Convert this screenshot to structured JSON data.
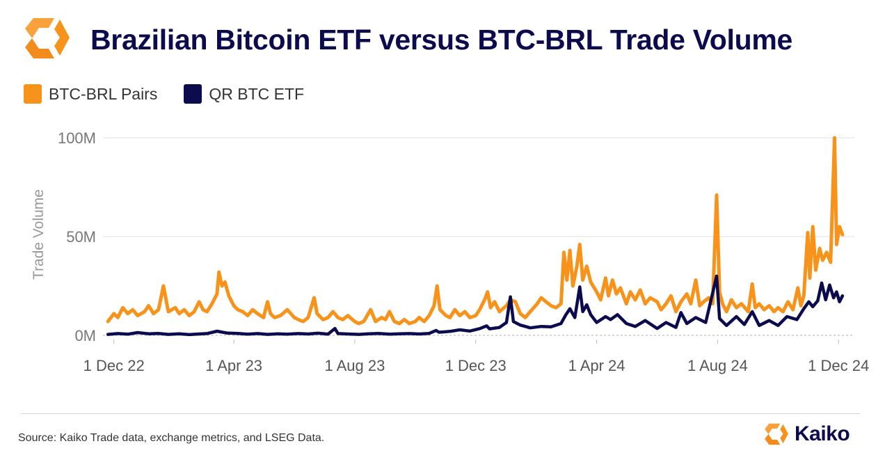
{
  "header": {
    "title": "Brazilian Bitcoin ETF versus BTC-BRL Trade Volume"
  },
  "colors": {
    "orange": "#f7931a",
    "navy": "#0b0b4e",
    "grid": "#e6e6e6",
    "axis_text": "#777777"
  },
  "legend": [
    {
      "label": "BTC-BRL Pairs",
      "color": "#f7931a"
    },
    {
      "label": "QR BTC ETF",
      "color": "#0b0b4e"
    }
  ],
  "footer": {
    "source": "Source: Kaiko Trade data, exchange metrics, and LSEG Data.",
    "brand": "Kaiko"
  },
  "chart_data": {
    "type": "line",
    "title": "Brazilian Bitcoin ETF versus BTC-BRL Trade Volume",
    "xlabel": "",
    "ylabel": "Trade Volume",
    "x_ticks": [
      "1 Dec 22",
      "1 Apr 23",
      "1 Aug 23",
      "1 Dec 23",
      "1 Apr 24",
      "1 Aug 24",
      "1 Dec 24"
    ],
    "y_ticks": [
      "0M",
      "50M",
      "100M"
    ],
    "ylim": [
      0,
      100
    ],
    "grid": true,
    "legend_position": "top-left",
    "series": [
      {
        "name": "BTC-BRL Pairs",
        "color": "#f7931a",
        "points": [
          [
            "2022-11-25",
            7
          ],
          [
            "2022-12-01",
            11
          ],
          [
            "2022-12-05",
            9
          ],
          [
            "2022-12-10",
            14
          ],
          [
            "2022-12-15",
            11
          ],
          [
            "2022-12-20",
            13
          ],
          [
            "2022-12-25",
            10
          ],
          [
            "2023-01-01",
            12
          ],
          [
            "2023-01-05",
            15
          ],
          [
            "2023-01-10",
            11
          ],
          [
            "2023-01-15",
            13
          ],
          [
            "2023-01-20",
            25
          ],
          [
            "2023-01-25",
            12
          ],
          [
            "2023-02-01",
            14
          ],
          [
            "2023-02-05",
            11
          ],
          [
            "2023-02-10",
            13
          ],
          [
            "2023-02-15",
            10
          ],
          [
            "2023-02-20",
            12
          ],
          [
            "2023-02-25",
            17
          ],
          [
            "2023-03-01",
            13
          ],
          [
            "2023-03-05",
            12
          ],
          [
            "2023-03-10",
            16
          ],
          [
            "2023-03-15",
            21
          ],
          [
            "2023-03-17",
            32
          ],
          [
            "2023-03-20",
            25
          ],
          [
            "2023-03-23",
            27
          ],
          [
            "2023-03-27",
            20
          ],
          [
            "2023-04-01",
            15
          ],
          [
            "2023-04-05",
            13
          ],
          [
            "2023-04-10",
            12
          ],
          [
            "2023-04-15",
            10
          ],
          [
            "2023-04-20",
            13
          ],
          [
            "2023-04-25",
            11
          ],
          [
            "2023-05-01",
            9
          ],
          [
            "2023-05-05",
            17
          ],
          [
            "2023-05-08",
            11
          ],
          [
            "2023-05-12",
            9
          ],
          [
            "2023-05-18",
            10
          ],
          [
            "2023-05-25",
            13
          ],
          [
            "2023-06-01",
            9
          ],
          [
            "2023-06-05",
            8
          ],
          [
            "2023-06-10",
            7
          ],
          [
            "2023-06-15",
            9
          ],
          [
            "2023-06-21",
            19
          ],
          [
            "2023-06-24",
            11
          ],
          [
            "2023-06-30",
            8
          ],
          [
            "2023-07-05",
            9
          ],
          [
            "2023-07-10",
            12
          ],
          [
            "2023-07-15",
            9
          ],
          [
            "2023-07-20",
            8
          ],
          [
            "2023-07-25",
            10
          ],
          [
            "2023-08-01",
            7
          ],
          [
            "2023-08-05",
            6
          ],
          [
            "2023-08-10",
            7
          ],
          [
            "2023-08-17",
            13
          ],
          [
            "2023-08-22",
            7
          ],
          [
            "2023-08-28",
            9
          ],
          [
            "2023-09-01",
            8
          ],
          [
            "2023-09-05",
            12
          ],
          [
            "2023-09-10",
            7
          ],
          [
            "2023-09-15",
            6
          ],
          [
            "2023-09-20",
            8
          ],
          [
            "2023-09-25",
            6
          ],
          [
            "2023-10-01",
            7
          ],
          [
            "2023-10-05",
            9
          ],
          [
            "2023-10-10",
            7
          ],
          [
            "2023-10-15",
            10
          ],
          [
            "2023-10-20",
            15
          ],
          [
            "2023-10-23",
            25
          ],
          [
            "2023-10-26",
            13
          ],
          [
            "2023-11-01",
            10
          ],
          [
            "2023-11-05",
            9
          ],
          [
            "2023-11-10",
            13
          ],
          [
            "2023-11-15",
            10
          ],
          [
            "2023-11-20",
            12
          ],
          [
            "2023-11-25",
            9
          ],
          [
            "2023-12-01",
            10
          ],
          [
            "2023-12-05",
            13
          ],
          [
            "2023-12-10",
            18
          ],
          [
            "2023-12-13",
            22
          ],
          [
            "2023-12-16",
            14
          ],
          [
            "2023-12-20",
            17
          ],
          [
            "2023-12-25",
            12
          ],
          [
            "2024-01-01",
            15
          ],
          [
            "2024-01-05",
            18
          ],
          [
            "2024-01-10",
            17
          ],
          [
            "2024-01-15",
            11
          ],
          [
            "2024-01-20",
            9
          ],
          [
            "2024-01-25",
            12
          ],
          [
            "2024-02-01",
            16
          ],
          [
            "2024-02-05",
            19
          ],
          [
            "2024-02-10",
            17
          ],
          [
            "2024-02-15",
            15
          ],
          [
            "2024-02-20",
            14
          ],
          [
            "2024-02-25",
            16
          ],
          [
            "2024-02-28",
            42
          ],
          [
            "2024-03-02",
            28
          ],
          [
            "2024-03-05",
            43
          ],
          [
            "2024-03-08",
            25
          ],
          [
            "2024-03-12",
            35
          ],
          [
            "2024-03-15",
            46
          ],
          [
            "2024-03-18",
            28
          ],
          [
            "2024-03-22",
            35
          ],
          [
            "2024-03-26",
            27
          ],
          [
            "2024-04-01",
            22
          ],
          [
            "2024-04-05",
            18
          ],
          [
            "2024-04-10",
            29
          ],
          [
            "2024-04-13",
            20
          ],
          [
            "2024-04-17",
            28
          ],
          [
            "2024-04-21",
            21
          ],
          [
            "2024-04-25",
            24
          ],
          [
            "2024-05-01",
            16
          ],
          [
            "2024-05-05",
            22
          ],
          [
            "2024-05-10",
            18
          ],
          [
            "2024-05-15",
            23
          ],
          [
            "2024-05-20",
            16
          ],
          [
            "2024-05-25",
            19
          ],
          [
            "2024-06-01",
            17
          ],
          [
            "2024-06-05",
            13
          ],
          [
            "2024-06-10",
            16
          ],
          [
            "2024-06-15",
            20
          ],
          [
            "2024-06-20",
            12
          ],
          [
            "2024-06-25",
            17
          ],
          [
            "2024-07-01",
            21
          ],
          [
            "2024-07-05",
            16
          ],
          [
            "2024-07-10",
            28
          ],
          [
            "2024-07-14",
            15
          ],
          [
            "2024-07-18",
            17
          ],
          [
            "2024-07-23",
            19
          ],
          [
            "2024-07-27",
            16
          ],
          [
            "2024-07-31",
            71
          ],
          [
            "2024-08-03",
            22
          ],
          [
            "2024-08-06",
            16
          ],
          [
            "2024-08-10",
            12
          ],
          [
            "2024-08-15",
            18
          ],
          [
            "2024-08-20",
            14
          ],
          [
            "2024-08-25",
            16
          ],
          [
            "2024-09-01",
            12
          ],
          [
            "2024-09-05",
            26
          ],
          [
            "2024-09-08",
            14
          ],
          [
            "2024-09-12",
            16
          ],
          [
            "2024-09-17",
            13
          ],
          [
            "2024-09-22",
            15
          ],
          [
            "2024-09-27",
            12
          ],
          [
            "2024-10-01",
            14
          ],
          [
            "2024-10-06",
            12
          ],
          [
            "2024-10-11",
            17
          ],
          [
            "2024-10-16",
            13
          ],
          [
            "2024-10-21",
            24
          ],
          [
            "2024-10-24",
            15
          ],
          [
            "2024-10-27",
            20
          ],
          [
            "2024-10-31",
            52
          ],
          [
            "2024-11-02",
            29
          ],
          [
            "2024-11-05",
            55
          ],
          [
            "2024-11-08",
            33
          ],
          [
            "2024-11-12",
            44
          ],
          [
            "2024-11-15",
            38
          ],
          [
            "2024-11-19",
            42
          ],
          [
            "2024-11-23",
            37
          ],
          [
            "2024-11-27",
            100
          ],
          [
            "2024-11-29",
            46
          ],
          [
            "2024-12-02",
            55
          ],
          [
            "2024-12-05",
            51
          ]
        ]
      },
      {
        "name": "QR BTC ETF",
        "color": "#0b0b4e",
        "points": [
          [
            "2022-11-25",
            0.5
          ],
          [
            "2022-12-05",
            0.9
          ],
          [
            "2022-12-15",
            0.6
          ],
          [
            "2022-12-25",
            1.4
          ],
          [
            "2023-01-05",
            0.8
          ],
          [
            "2023-01-15",
            1.0
          ],
          [
            "2023-01-25",
            0.5
          ],
          [
            "2023-02-05",
            0.8
          ],
          [
            "2023-02-15",
            0.4
          ],
          [
            "2023-02-25",
            0.7
          ],
          [
            "2023-03-05",
            0.9
          ],
          [
            "2023-03-15",
            2.1
          ],
          [
            "2023-03-25",
            1.2
          ],
          [
            "2023-04-05",
            1.0
          ],
          [
            "2023-04-15",
            0.6
          ],
          [
            "2023-04-25",
            0.9
          ],
          [
            "2023-05-05",
            0.5
          ],
          [
            "2023-05-15",
            0.8
          ],
          [
            "2023-05-25",
            0.6
          ],
          [
            "2023-06-05",
            0.9
          ],
          [
            "2023-06-15",
            0.7
          ],
          [
            "2023-06-25",
            1.1
          ],
          [
            "2023-07-05",
            0.6
          ],
          [
            "2023-07-12",
            3.5
          ],
          [
            "2023-07-15",
            0.9
          ],
          [
            "2023-07-25",
            0.7
          ],
          [
            "2023-08-05",
            0.5
          ],
          [
            "2023-08-15",
            0.8
          ],
          [
            "2023-08-25",
            1.0
          ],
          [
            "2023-09-05",
            0.6
          ],
          [
            "2023-09-15",
            0.8
          ],
          [
            "2023-09-25",
            0.9
          ],
          [
            "2023-10-05",
            0.7
          ],
          [
            "2023-10-15",
            1.0
          ],
          [
            "2023-10-22",
            2.5
          ],
          [
            "2023-10-25",
            1.6
          ],
          [
            "2023-11-05",
            2.0
          ],
          [
            "2023-11-15",
            2.8
          ],
          [
            "2023-11-25",
            2.2
          ],
          [
            "2023-12-05",
            3.4
          ],
          [
            "2023-12-12",
            4.8
          ],
          [
            "2023-12-15",
            3.3
          ],
          [
            "2023-12-25",
            4.0
          ],
          [
            "2024-01-01",
            6.5
          ],
          [
            "2024-01-05",
            19.5
          ],
          [
            "2024-01-08",
            7.0
          ],
          [
            "2024-01-15",
            5.2
          ],
          [
            "2024-01-25",
            3.8
          ],
          [
            "2024-02-05",
            4.5
          ],
          [
            "2024-02-15",
            4.3
          ],
          [
            "2024-02-25",
            6.0
          ],
          [
            "2024-03-01",
            10.5
          ],
          [
            "2024-03-05",
            13.5
          ],
          [
            "2024-03-10",
            9.0
          ],
          [
            "2024-03-15",
            24.5
          ],
          [
            "2024-03-18",
            12.0
          ],
          [
            "2024-03-22",
            15.5
          ],
          [
            "2024-03-26",
            10.5
          ],
          [
            "2024-04-01",
            6.5
          ],
          [
            "2024-04-10",
            9.5
          ],
          [
            "2024-04-15",
            8.0
          ],
          [
            "2024-04-22",
            10.5
          ],
          [
            "2024-05-01",
            6.0
          ],
          [
            "2024-05-10",
            4.5
          ],
          [
            "2024-05-20",
            7.5
          ],
          [
            "2024-06-01",
            3.5
          ],
          [
            "2024-06-10",
            6.5
          ],
          [
            "2024-06-20",
            4.0
          ],
          [
            "2024-06-25",
            11.5
          ],
          [
            "2024-07-01",
            6.0
          ],
          [
            "2024-07-10",
            9.0
          ],
          [
            "2024-07-20",
            6.5
          ],
          [
            "2024-07-31",
            30.0
          ],
          [
            "2024-08-03",
            8.5
          ],
          [
            "2024-08-10",
            5.0
          ],
          [
            "2024-08-20",
            9.5
          ],
          [
            "2024-08-28",
            5.5
          ],
          [
            "2024-09-05",
            12.0
          ],
          [
            "2024-09-12",
            5.0
          ],
          [
            "2024-09-22",
            7.5
          ],
          [
            "2024-10-01",
            5.0
          ],
          [
            "2024-10-10",
            9.5
          ],
          [
            "2024-10-20",
            8.0
          ],
          [
            "2024-10-27",
            13.5
          ],
          [
            "2024-11-01",
            17.0
          ],
          [
            "2024-11-05",
            14.5
          ],
          [
            "2024-11-10",
            17.5
          ],
          [
            "2024-11-14",
            26.5
          ],
          [
            "2024-11-18",
            18.0
          ],
          [
            "2024-11-22",
            25.5
          ],
          [
            "2024-11-26",
            19.0
          ],
          [
            "2024-11-29",
            22.0
          ],
          [
            "2024-12-02",
            17.0
          ],
          [
            "2024-12-05",
            20.0
          ]
        ]
      }
    ]
  }
}
